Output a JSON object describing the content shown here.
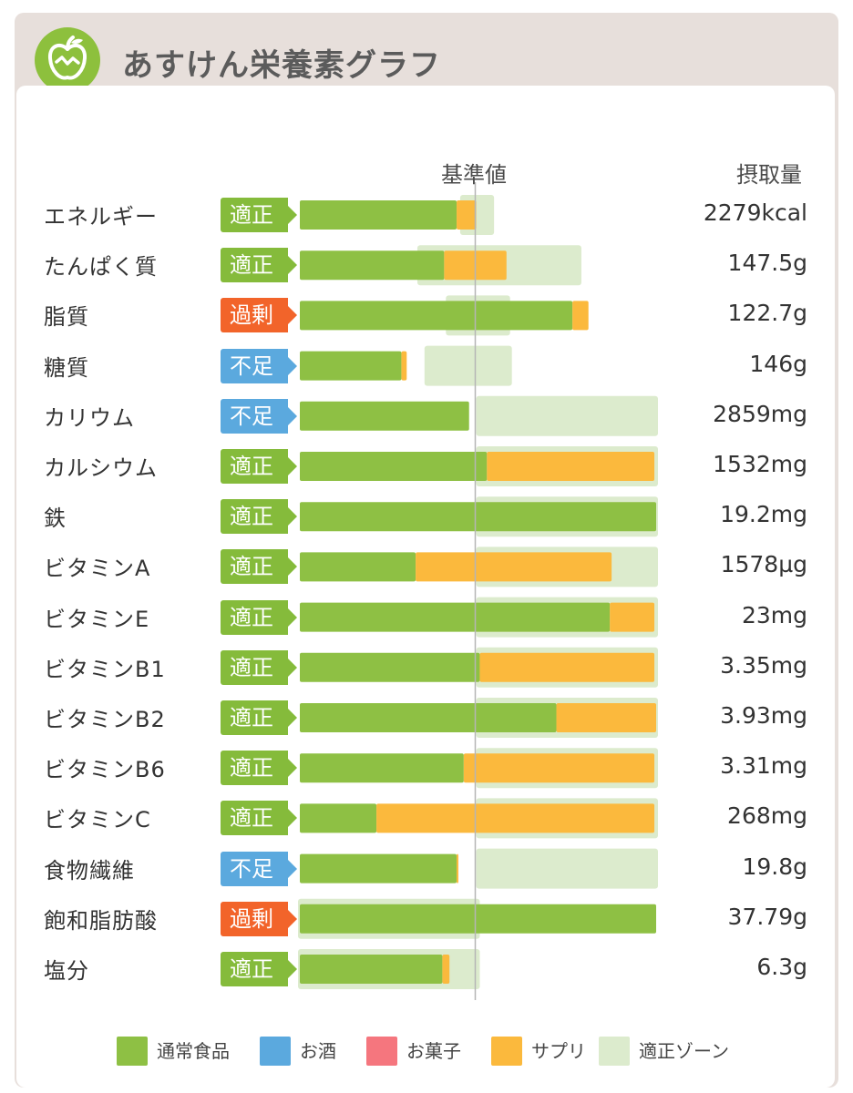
{
  "header": {
    "title": "あすけん栄養素グラフ"
  },
  "columns": {
    "reference": "基準値",
    "intake": "摂取量"
  },
  "colors": {
    "normal": "#8ec044",
    "alcohol": "#5ba9de",
    "snack": "#f5767e",
    "supplement": "#fbb93d",
    "zone": "#dcebcd",
    "status_ok": "#85bb3b",
    "status_over": "#f2642a",
    "status_under": "#5ba9de"
  },
  "legend": [
    "通常食品",
    "お酒",
    "お菓子",
    "サプリ",
    "適正ゾーン"
  ],
  "chart_data": {
    "type": "bar",
    "orientation": "horizontal-stacked",
    "title": "あすけん栄養素グラフ",
    "value_unit": "percent_of_reference",
    "reference_value": 100,
    "x_range": [
      -100,
      100
    ],
    "series_names": [
      "通常食品",
      "お酒",
      "お菓子",
      "サプリ"
    ],
    "rows": [
      {
        "label": "エネルギー",
        "status": "適正",
        "status_type": "ok",
        "normal": 88,
        "supplement": 11,
        "zone": [
          91,
          108
        ],
        "intake": "2279kcal"
      },
      {
        "label": "たんぱく質",
        "status": "適正",
        "status_type": "ok",
        "normal": 81,
        "supplement": 35,
        "zone": [
          67,
          157
        ],
        "intake": "147.5g"
      },
      {
        "label": "脂質",
        "status": "過剰",
        "status_type": "over",
        "normal": 153,
        "supplement": 9,
        "zone": [
          83,
          117
        ],
        "intake": "122.7g"
      },
      {
        "label": "糖質",
        "status": "不足",
        "status_type": "under",
        "normal": 57,
        "supplement": 3,
        "zone": [
          71,
          118
        ],
        "intake": "146g"
      },
      {
        "label": "カリウム",
        "status": "不足",
        "status_type": "under",
        "normal": 95,
        "supplement": 0,
        "zone": [
          100,
          200
        ],
        "intake": "2859mg"
      },
      {
        "label": "カルシウム",
        "status": "適正",
        "status_type": "ok",
        "normal": 105,
        "supplement": 94,
        "zone": [
          100,
          200
        ],
        "intake": "1532mg"
      },
      {
        "label": "鉄",
        "status": "適正",
        "status_type": "ok",
        "normal": 200,
        "supplement": 0,
        "zone": [
          100,
          200
        ],
        "intake": "19.2mg"
      },
      {
        "label": "ビタミンA",
        "status": "適正",
        "status_type": "ok",
        "normal": 65,
        "supplement": 110,
        "zone": [
          100,
          200
        ],
        "intake": "1578µg"
      },
      {
        "label": "ビタミンE",
        "status": "適正",
        "status_type": "ok",
        "normal": 174,
        "supplement": 25,
        "zone": [
          100,
          200
        ],
        "intake": "23mg"
      },
      {
        "label": "ビタミンB1",
        "status": "適正",
        "status_type": "ok",
        "normal": 101,
        "supplement": 98,
        "zone": [
          100,
          200
        ],
        "intake": "3.35mg"
      },
      {
        "label": "ビタミンB2",
        "status": "適正",
        "status_type": "ok",
        "normal": 144,
        "supplement": 56,
        "zone": [
          100,
          200
        ],
        "intake": "3.93mg"
      },
      {
        "label": "ビタミンB6",
        "status": "適正",
        "status_type": "ok",
        "normal": 92,
        "supplement": 107,
        "zone": [
          100,
          200
        ],
        "intake": "3.31mg"
      },
      {
        "label": "ビタミンC",
        "status": "適正",
        "status_type": "ok",
        "normal": 43,
        "supplement": 156,
        "zone": [
          100,
          200
        ],
        "intake": "268mg"
      },
      {
        "label": "食物繊維",
        "status": "不足",
        "status_type": "under",
        "normal": 88,
        "supplement": 1,
        "zone": [
          100,
          200
        ],
        "intake": "19.8g"
      },
      {
        "label": "飽和脂肪酸",
        "status": "過剰",
        "status_type": "over",
        "normal": 200,
        "supplement": 0,
        "zone": [
          0,
          100
        ],
        "intake": "37.79g"
      },
      {
        "label": "塩分",
        "status": "適正",
        "status_type": "ok",
        "normal": 80,
        "supplement": 4,
        "zone": [
          0,
          100
        ],
        "intake": "6.3g"
      }
    ]
  }
}
